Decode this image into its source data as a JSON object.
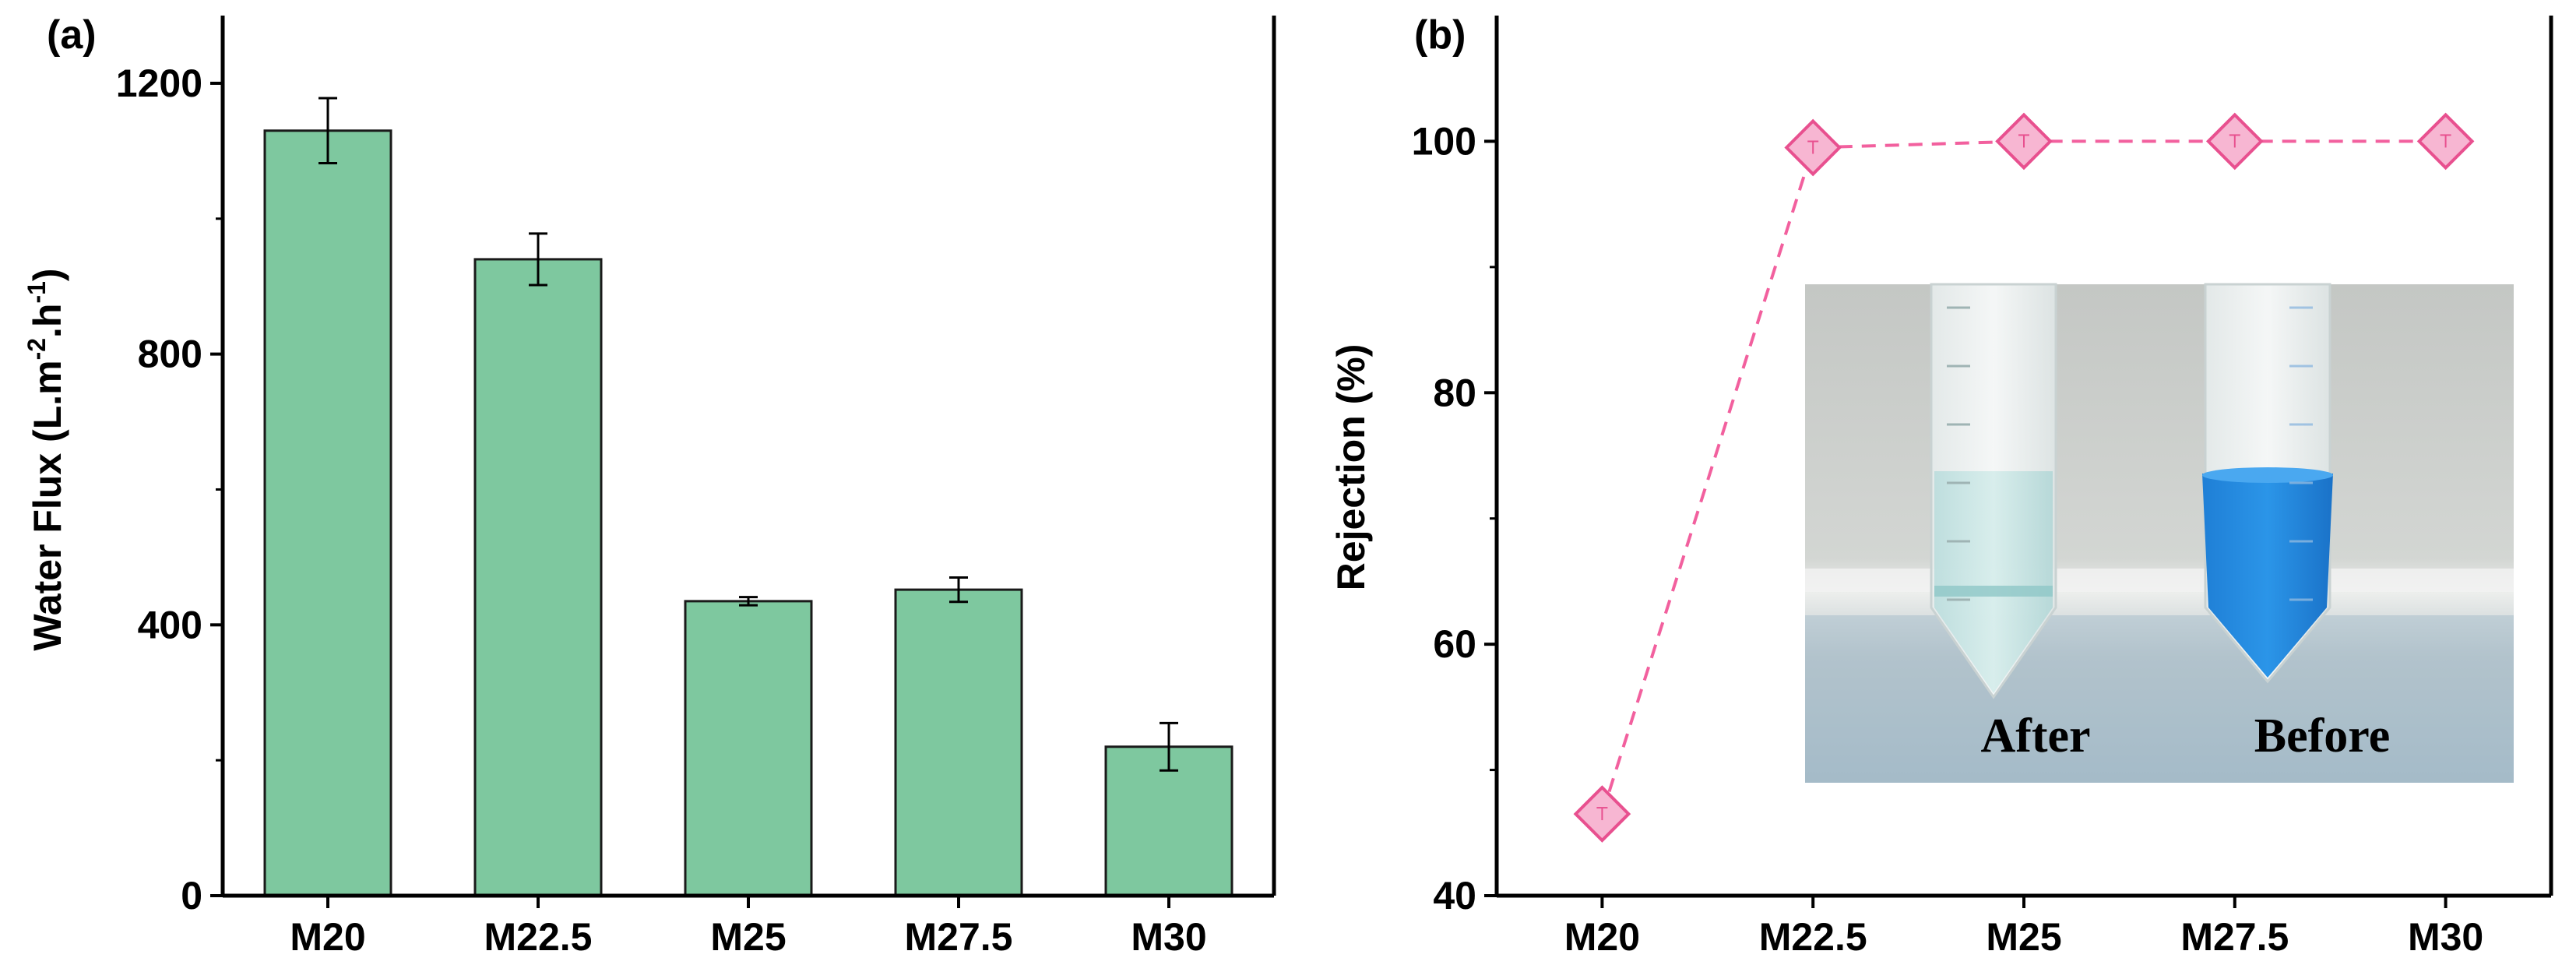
{
  "chart_data": [
    {
      "type": "bar",
      "panel_label": "(a)",
      "title": "",
      "xlabel": "",
      "ylabel": {
        "main": "Water Flux (L.m",
        "sup1": "-2",
        "mid": ".h",
        "sup2": "-1",
        "end": ")"
      },
      "categories": [
        "M20",
        "M22.5",
        "M25",
        "M27.5",
        "M30"
      ],
      "values": [
        1130,
        940,
        435,
        452,
        220
      ],
      "errors": [
        48,
        38,
        6,
        18,
        35
      ],
      "ylim": [
        0,
        1300
      ],
      "yticks": [
        0,
        400,
        800,
        1200
      ],
      "ytick_labels": [
        "0",
        "400",
        "800",
        "1200"
      ],
      "colors": {
        "bar_fill": "#7ec89f",
        "bar_edge": "#1a1a1a",
        "axis": "#000000"
      }
    },
    {
      "type": "line",
      "panel_label": "(b)",
      "title": "",
      "xlabel": "",
      "ylabel": "Rejection (%)",
      "categories": [
        "M20",
        "M22.5",
        "M25",
        "M27.5",
        "M30"
      ],
      "values": [
        46.5,
        99.5,
        100,
        100,
        100
      ],
      "ylim": [
        40,
        110
      ],
      "yticks": [
        40,
        60,
        80,
        100
      ],
      "ytick_labels": [
        "40",
        "60",
        "80",
        "100"
      ],
      "marker": "diamond",
      "line_style": "dashed",
      "colors": {
        "line": "#f2609e",
        "marker_fill": "#f7b6d2",
        "marker_edge": "#e8508f",
        "axis": "#000000"
      },
      "inset_photo": {
        "labels": [
          "After",
          "Before"
        ]
      }
    }
  ]
}
